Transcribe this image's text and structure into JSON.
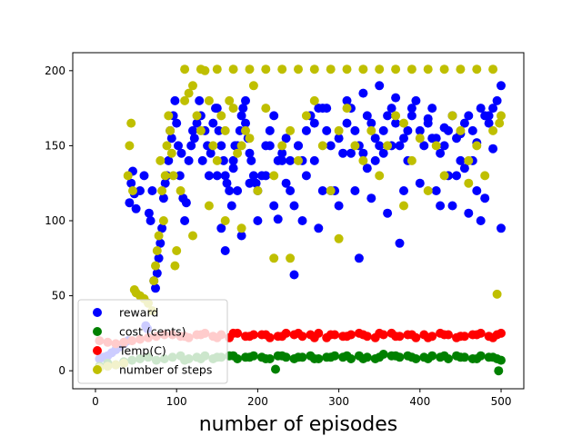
{
  "chart_data": {
    "type": "scatter",
    "title": "",
    "xlabel": "number of episodes",
    "ylabel": "",
    "xlim": [
      -28,
      528
    ],
    "ylim": [
      -12,
      212
    ],
    "xticks": [
      0,
      100,
      200,
      300,
      400,
      500
    ],
    "yticks": [
      0,
      50,
      100,
      150,
      200
    ],
    "grid": false,
    "legend_position": "lower-left",
    "series": [
      {
        "name": "reward",
        "color": "#0000ff",
        "x": [
          5,
          10,
          15,
          20,
          25,
          30,
          35,
          40,
          42,
          44,
          46,
          48,
          50,
          55,
          60,
          62,
          64,
          66,
          68,
          70,
          72,
          74,
          76,
          78,
          80,
          82,
          84,
          86,
          88,
          90,
          92,
          94,
          96,
          98,
          100,
          102,
          104,
          106,
          108,
          110,
          112,
          115,
          118,
          120,
          122,
          125,
          128,
          130,
          132,
          135,
          138,
          140,
          142,
          145,
          148,
          150,
          152,
          155,
          158,
          160,
          162,
          165,
          168,
          170,
          172,
          175,
          178,
          180,
          182,
          185,
          188,
          190,
          192,
          195,
          198,
          200,
          205,
          210,
          215,
          220,
          225,
          230,
          235,
          240,
          245,
          250,
          255,
          260,
          265,
          270,
          275,
          280,
          285,
          290,
          295,
          300,
          305,
          310,
          315,
          320,
          325,
          330,
          335,
          340,
          345,
          350,
          355,
          360,
          365,
          370,
          375,
          380,
          385,
          390,
          395,
          400,
          405,
          410,
          415,
          420,
          425,
          430,
          435,
          440,
          445,
          450,
          455,
          460,
          465,
          470,
          475,
          480,
          485,
          490,
          495,
          500,
          160,
          180,
          200,
          220,
          240,
          260,
          280,
          300,
          320,
          340,
          360,
          380,
          400,
          420,
          440,
          460,
          480,
          500,
          150,
          170,
          190,
          210,
          230,
          250,
          270,
          290,
          310,
          330,
          350,
          370,
          390,
          410,
          430,
          450,
          470,
          490,
          225,
          325,
          425,
          175,
          275,
          375,
          475,
          245,
          345,
          445,
          265,
          365,
          465,
          155,
          255,
          355,
          455,
          185,
          285,
          385,
          485,
          215,
          315,
          415,
          235,
          335,
          435
        ],
        "y": [
          8,
          9,
          10,
          12,
          14,
          16,
          18,
          20,
          112,
          125,
          133,
          118,
          108,
          120,
          130,
          30,
          28,
          105,
          100,
          120,
          60,
          55,
          65,
          75,
          85,
          95,
          115,
          125,
          130,
          140,
          160,
          155,
          170,
          180,
          165,
          150,
          130,
          145,
          115,
          100,
          112,
          140,
          150,
          160,
          155,
          165,
          180,
          170,
          140,
          160,
          150,
          130,
          145,
          165,
          175,
          175,
          160,
          150,
          140,
          130,
          125,
          120,
          110,
          140,
          150,
          150,
          160,
          170,
          175,
          165,
          155,
          145,
          140,
          130,
          125,
          120,
          130,
          150,
          160,
          170,
          140,
          145,
          155,
          140,
          110,
          150,
          140,
          160,
          170,
          165,
          175,
          175,
          160,
          150,
          120,
          155,
          145,
          165,
          175,
          160,
          150,
          145,
          170,
          165,
          155,
          150,
          160,
          170,
          175,
          165,
          150,
          155,
          140,
          170,
          180,
          160,
          150,
          165,
          175,
          155,
          145,
          150,
          160,
          170,
          155,
          140,
          165,
          170,
          160,
          120,
          175,
          170,
          165,
          175,
          180,
          190,
          80,
          90,
          100,
          110,
          120,
          130,
          120,
          110,
          120,
          115,
          105,
          120,
          125,
          120,
          110,
          105,
          115,
          95,
          130,
          135,
          125,
          130,
          140,
          150,
          140,
          120,
          180,
          185,
          190,
          182,
          175,
          168,
          162,
          158,
          152,
          148,
          101,
          75,
          110,
          120,
          95,
          85,
          100,
          64,
          140,
          130,
          170,
          150,
          140,
          95,
          100,
          145,
          135,
          180,
          175,
          160,
          170,
          150,
          145,
          155,
          125,
          135,
          130
        ],
        "size": 5
      },
      {
        "name": "cost (cents)",
        "color": "#008000",
        "x": [
          5,
          15,
          25,
          35,
          45,
          55,
          65,
          75,
          85,
          95,
          105,
          115,
          125,
          135,
          145,
          155,
          165,
          175,
          185,
          195,
          205,
          215,
          225,
          235,
          245,
          255,
          265,
          275,
          285,
          295,
          305,
          315,
          325,
          335,
          345,
          355,
          365,
          375,
          385,
          395,
          405,
          415,
          425,
          435,
          445,
          455,
          465,
          475,
          485,
          495,
          500,
          222,
          497,
          110,
          130,
          150,
          170,
          190,
          210,
          230,
          250,
          270,
          290,
          310,
          330,
          350,
          370,
          390,
          410,
          430,
          450,
          470,
          490
        ],
        "y": [
          3,
          5,
          4,
          6,
          7,
          8,
          9,
          7,
          8,
          9,
          10,
          8,
          9,
          10,
          8,
          9,
          10,
          8,
          9,
          10,
          9,
          8,
          10,
          9,
          8,
          9,
          10,
          8,
          9,
          10,
          9,
          8,
          10,
          9,
          8,
          11,
          10,
          9,
          10,
          8,
          9,
          10,
          9,
          8,
          10,
          9,
          8,
          10,
          9,
          8,
          7,
          1,
          0,
          7,
          8,
          9,
          10,
          9,
          8,
          10,
          9,
          8,
          9,
          10,
          8,
          9,
          10,
          9,
          8,
          10,
          9,
          8,
          9
        ],
        "size": 5
      },
      {
        "name": "Temp(C)",
        "color": "#ff0000",
        "x": [
          5,
          15,
          25,
          35,
          45,
          55,
          65,
          75,
          85,
          95,
          105,
          115,
          125,
          135,
          145,
          155,
          165,
          175,
          185,
          195,
          205,
          215,
          225,
          235,
          245,
          255,
          265,
          275,
          285,
          295,
          305,
          315,
          325,
          335,
          345,
          355,
          365,
          375,
          385,
          395,
          405,
          415,
          425,
          435,
          445,
          455,
          465,
          475,
          485,
          495,
          500,
          110,
          130,
          150,
          170,
          190,
          210,
          230,
          250,
          270,
          290,
          310,
          330,
          350,
          370,
          390,
          410,
          430,
          450,
          470,
          490
        ],
        "y": [
          20,
          19,
          18,
          19,
          20,
          21,
          22,
          23,
          24,
          24,
          23,
          22,
          24,
          25,
          23,
          24,
          22,
          25,
          23,
          24,
          24,
          22,
          23,
          25,
          24,
          23,
          24,
          25,
          22,
          24,
          23,
          24,
          25,
          23,
          22,
          24,
          25,
          23,
          24,
          22,
          24,
          23,
          25,
          24,
          22,
          23,
          24,
          25,
          23,
          24,
          25,
          23,
          24,
          22,
          25,
          23,
          24,
          23,
          25,
          22,
          24,
          23,
          24,
          25,
          23,
          24,
          22,
          24,
          23,
          24,
          22
        ],
        "size": 5
      },
      {
        "name": "number of steps",
        "color": "#bfbf00",
        "x": [
          5,
          15,
          25,
          35,
          40,
          42,
          44,
          46,
          48,
          50,
          55,
          60,
          65,
          70,
          72,
          74,
          76,
          78,
          80,
          82,
          84,
          86,
          88,
          90,
          92,
          94,
          96,
          98,
          100,
          105,
          110,
          115,
          120,
          125,
          130,
          135,
          140,
          145,
          150,
          155,
          160,
          165,
          170,
          175,
          180,
          185,
          190,
          195,
          200,
          210,
          220,
          230,
          240,
          250,
          260,
          270,
          280,
          290,
          300,
          310,
          320,
          330,
          340,
          350,
          360,
          370,
          380,
          390,
          400,
          410,
          420,
          430,
          440,
          450,
          460,
          470,
          480,
          490,
          500,
          110,
          130,
          150,
          170,
          190,
          210,
          230,
          250,
          270,
          290,
          310,
          330,
          350,
          370,
          390,
          410,
          430,
          450,
          470,
          490,
          120,
          140,
          160,
          180,
          220,
          240,
          300,
          380,
          460,
          495,
          498
        ],
        "y": [
          2,
          3,
          4,
          5,
          130,
          150,
          165,
          120,
          54,
          52,
          50,
          48,
          45,
          40,
          60,
          70,
          80,
          90,
          140,
          120,
          100,
          130,
          150,
          170,
          160,
          145,
          130,
          70,
          80,
          120,
          180,
          185,
          190,
          170,
          160,
          200,
          180,
          150,
          140,
          170,
          160,
          180,
          175,
          145,
          150,
          160,
          155,
          190,
          120,
          175,
          130,
          150,
          160,
          140,
          170,
          180,
          150,
          120,
          160,
          175,
          150,
          140,
          160,
          130,
          150,
          170,
          165,
          140,
          155,
          120,
          150,
          130,
          170,
          160,
          140,
          150,
          130,
          160,
          170,
          201,
          201,
          201,
          201,
          201,
          201,
          201,
          201,
          201,
          201,
          201,
          201,
          201,
          201,
          201,
          201,
          201,
          201,
          201,
          201,
          90,
          110,
          100,
          95,
          75,
          75,
          88,
          110,
          125,
          51,
          165
        ],
        "size": 5
      }
    ]
  }
}
